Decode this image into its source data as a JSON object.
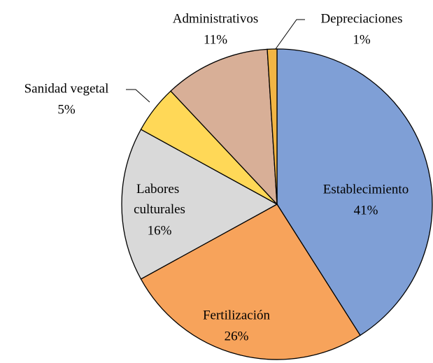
{
  "chart_data": {
    "type": "pie",
    "categories": [
      "Establecimiento",
      "Fertilización",
      "Labores culturales",
      "Sanidad vegetal",
      "Administrativos",
      "Depreciaciones"
    ],
    "values": [
      41,
      26,
      16,
      5,
      11,
      1
    ],
    "value_labels": [
      "41%",
      "26%",
      "16%",
      "5%",
      "11%",
      "1%"
    ],
    "colors": [
      "#7f9fd6",
      "#f7a35b",
      "#d9d9d9",
      "#ffd857",
      "#d8af97",
      "#f2b544"
    ]
  }
}
